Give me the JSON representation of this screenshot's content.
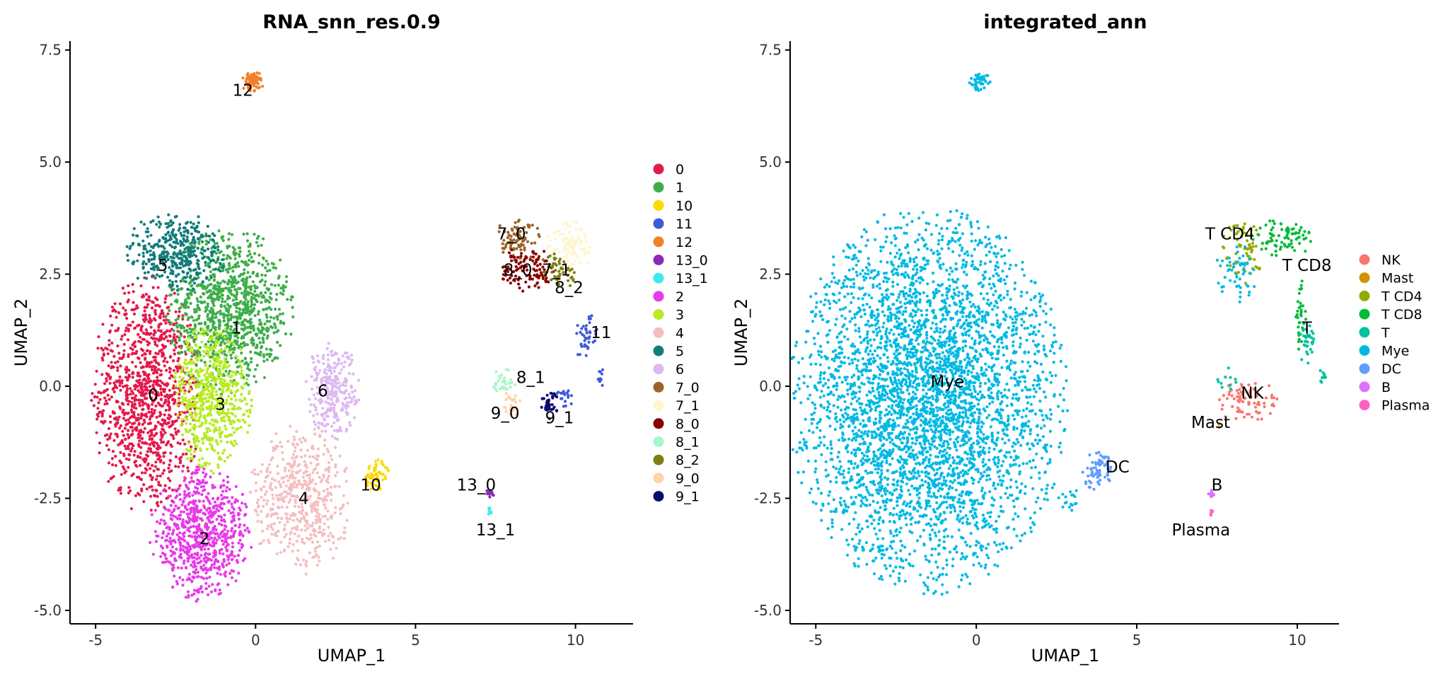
{
  "figure": {
    "background": "#ffffff"
  },
  "chart_data": [
    {
      "type": "scatter",
      "title": "RNA_snn_res.0.9",
      "xlabel": "UMAP_1",
      "ylabel": "UMAP_2",
      "xlim": [
        -5.8,
        11.8
      ],
      "ylim": [
        -5.3,
        7.7
      ],
      "xticks": [
        -5,
        0,
        5,
        10
      ],
      "xtick_labels": [
        "-5",
        "0",
        "5",
        "10"
      ],
      "yticks": [
        -5.0,
        -2.5,
        0.0,
        2.5,
        5.0,
        7.5
      ],
      "ytick_labels": [
        "-5.0",
        "-2.5",
        "0.0",
        "2.5",
        "5.0",
        "7.5"
      ],
      "grid": false,
      "legend_position": "right",
      "clusters": [
        {
          "name": "0",
          "color": "#E41A4A",
          "label_x": -3.2,
          "label_y": -0.2,
          "n": 1100,
          "regions": [
            [
              -3.4,
              -0.2,
              1.55,
              2.4,
              1
            ]
          ]
        },
        {
          "name": "1",
          "color": "#3DAE4A",
          "label_x": -0.6,
          "label_y": 1.3,
          "n": 1000,
          "regions": [
            [
              -0.8,
              1.7,
              1.8,
              1.7,
              1
            ]
          ]
        },
        {
          "name": "10",
          "color": "#FFD700",
          "label_x": 3.6,
          "label_y": -2.2,
          "n": 60,
          "regions": [
            [
              3.8,
              -2.0,
              0.45,
              0.35,
              1
            ]
          ]
        },
        {
          "name": "11",
          "color": "#3E5BD6",
          "label_x": 10.8,
          "label_y": 1.2,
          "n": 70,
          "regions": [
            [
              10.3,
              1.1,
              0.35,
              0.5,
              0.6
            ],
            [
              10.8,
              0.2,
              0.12,
              0.2,
              0.15
            ],
            [
              9.7,
              -0.2,
              0.35,
              0.3,
              0.25
            ]
          ]
        },
        {
          "name": "12",
          "color": "#F2802B",
          "label_x": -0.4,
          "label_y": 6.6,
          "n": 90,
          "regions": [
            [
              -0.1,
              6.8,
              0.35,
              0.2,
              1
            ]
          ]
        },
        {
          "name": "13_0",
          "color": "#8B2BB5",
          "label_x": 6.9,
          "label_y": -2.2,
          "n": 14,
          "regions": [
            [
              7.3,
              -2.4,
              0.15,
              0.1,
              1
            ]
          ]
        },
        {
          "name": "13_1",
          "color": "#3EE8EE",
          "label_x": 7.5,
          "label_y": -3.2,
          "n": 8,
          "regions": [
            [
              7.3,
              -2.8,
              0.1,
              0.1,
              1
            ]
          ]
        },
        {
          "name": "2",
          "color": "#E73AE8",
          "label_x": -1.6,
          "label_y": -3.4,
          "n": 750,
          "regions": [
            [
              -1.7,
              -3.3,
              1.45,
              1.35,
              1
            ]
          ]
        },
        {
          "name": "3",
          "color": "#B7EB24",
          "label_x": -1.1,
          "label_y": -0.4,
          "n": 600,
          "regions": [
            [
              -1.4,
              -0.3,
              1.15,
              1.5,
              1
            ]
          ]
        },
        {
          "name": "4",
          "color": "#F4BEC0",
          "label_x": 1.5,
          "label_y": -2.5,
          "n": 500,
          "regions": [
            [
              1.4,
              -2.5,
              1.45,
              1.55,
              1
            ]
          ]
        },
        {
          "name": "5",
          "color": "#127C7A",
          "label_x": -2.9,
          "label_y": 2.7,
          "n": 380,
          "regions": [
            [
              -2.5,
              3.0,
              1.45,
              0.8,
              1
            ]
          ]
        },
        {
          "name": "6",
          "color": "#DDB8F2",
          "label_x": 2.1,
          "label_y": -0.1,
          "n": 280,
          "regions": [
            [
              2.4,
              -0.1,
              0.8,
              1.0,
              1
            ]
          ]
        },
        {
          "name": "7_0",
          "color": "#9C6328",
          "label_x": 8.0,
          "label_y": 3.4,
          "n": 80,
          "regions": [
            [
              8.2,
              3.3,
              0.65,
              0.45,
              1
            ]
          ]
        },
        {
          "name": "7_1",
          "color": "#FFF5CE",
          "label_x": 9.4,
          "label_y": 2.6,
          "n": 110,
          "regions": [
            [
              9.8,
              3.1,
              0.65,
              0.55,
              1
            ]
          ]
        },
        {
          "name": "8_0",
          "color": "#8B0000",
          "label_x": 8.2,
          "label_y": 2.6,
          "n": 110,
          "regions": [
            [
              8.5,
              2.6,
              0.8,
              0.5,
              1
            ]
          ]
        },
        {
          "name": "8_1",
          "color": "#A8F7C8",
          "label_x": 8.6,
          "label_y": 0.2,
          "n": 30,
          "regions": [
            [
              7.8,
              0.1,
              0.35,
              0.3,
              1
            ]
          ]
        },
        {
          "name": "8_2",
          "color": "#7F7D14",
          "label_x": 9.8,
          "label_y": 2.2,
          "n": 50,
          "regions": [
            [
              9.5,
              2.6,
              0.55,
              0.4,
              1
            ]
          ]
        },
        {
          "name": "9_0",
          "color": "#FFD3A8",
          "label_x": 7.8,
          "label_y": -0.6,
          "n": 25,
          "regions": [
            [
              8.0,
              -0.4,
              0.3,
              0.25,
              1
            ]
          ]
        },
        {
          "name": "9_1",
          "color": "#0B0B6E",
          "label_x": 9.5,
          "label_y": -0.7,
          "n": 35,
          "regions": [
            [
              9.2,
              -0.4,
              0.25,
              0.3,
              1
            ]
          ]
        }
      ]
    },
    {
      "type": "scatter",
      "title": "integrated_ann",
      "xlabel": "UMAP_1",
      "ylabel": "UMAP_2",
      "xlim": [
        -5.8,
        11.3
      ],
      "ylim": [
        -5.3,
        7.7
      ],
      "xticks": [
        -5,
        0,
        5,
        10
      ],
      "xtick_labels": [
        "-5",
        "0",
        "5",
        "10"
      ],
      "yticks": [
        -5.0,
        -2.5,
        0.0,
        2.5,
        5.0,
        7.5
      ],
      "ytick_labels": [
        "-5.0",
        "-2.5",
        "0.0",
        "2.5",
        "5.0",
        "7.5"
      ],
      "grid": false,
      "legend_position": "right",
      "clusters": [
        {
          "name": "NK",
          "color": "#F8766D",
          "label_x": 8.6,
          "label_y": -0.15,
          "n": 80,
          "regions": [
            [
              8.4,
              -0.3,
              0.9,
              0.45,
              1
            ]
          ]
        },
        {
          "name": "Mast",
          "color": "#D39200",
          "label_x": 7.3,
          "label_y": -0.8,
          "n": 2,
          "regions": [
            [
              7.6,
              -0.9,
              0.1,
              0.1,
              1
            ]
          ]
        },
        {
          "name": "T CD4",
          "color": "#93AA00",
          "label_x": 7.9,
          "label_y": 3.4,
          "n": 70,
          "regions": [
            [
              8.3,
              3.0,
              0.6,
              0.7,
              1
            ]
          ]
        },
        {
          "name": "T CD8",
          "color": "#00BA38",
          "label_x": 10.3,
          "label_y": 2.7,
          "n": 110,
          "regions": [
            [
              9.6,
              3.3,
              0.9,
              0.4,
              0.7
            ],
            [
              10.1,
              1.5,
              0.15,
              0.8,
              0.3
            ]
          ]
        },
        {
          "name": "T",
          "color": "#00C19F",
          "label_x": 10.3,
          "label_y": 1.3,
          "n": 55,
          "regions": [
            [
              10.3,
              1.0,
              0.25,
              0.5,
              0.6
            ],
            [
              10.8,
              0.2,
              0.15,
              0.2,
              0.2
            ],
            [
              7.8,
              0.1,
              0.3,
              0.3,
              0.2
            ]
          ]
        },
        {
          "name": "Mye",
          "color": "#00B9E3",
          "label_x": -0.9,
          "label_y": 0.1,
          "n": 4200,
          "regions": [
            [
              -1.5,
              -0.3,
              3.9,
              3.9,
              12
            ],
            [
              0.1,
              6.8,
              0.3,
              0.2,
              0.12
            ],
            [
              8.1,
              2.6,
              0.6,
              0.7,
              0.15
            ],
            [
              2.9,
              -2.5,
              0.3,
              0.3,
              0.05
            ]
          ]
        },
        {
          "name": "DC",
          "color": "#619CFF",
          "label_x": 4.4,
          "label_y": -1.8,
          "n": 70,
          "regions": [
            [
              3.8,
              -1.9,
              0.45,
              0.4,
              1
            ]
          ]
        },
        {
          "name": "B",
          "color": "#DB72FB",
          "label_x": 7.5,
          "label_y": -2.2,
          "n": 12,
          "regions": [
            [
              7.3,
              -2.4,
              0.12,
              0.12,
              1
            ]
          ]
        },
        {
          "name": "Plasma",
          "color": "#FF61C3",
          "label_x": 7.0,
          "label_y": -3.2,
          "n": 6,
          "regions": [
            [
              7.3,
              -2.8,
              0.08,
              0.08,
              1
            ]
          ]
        }
      ]
    }
  ]
}
